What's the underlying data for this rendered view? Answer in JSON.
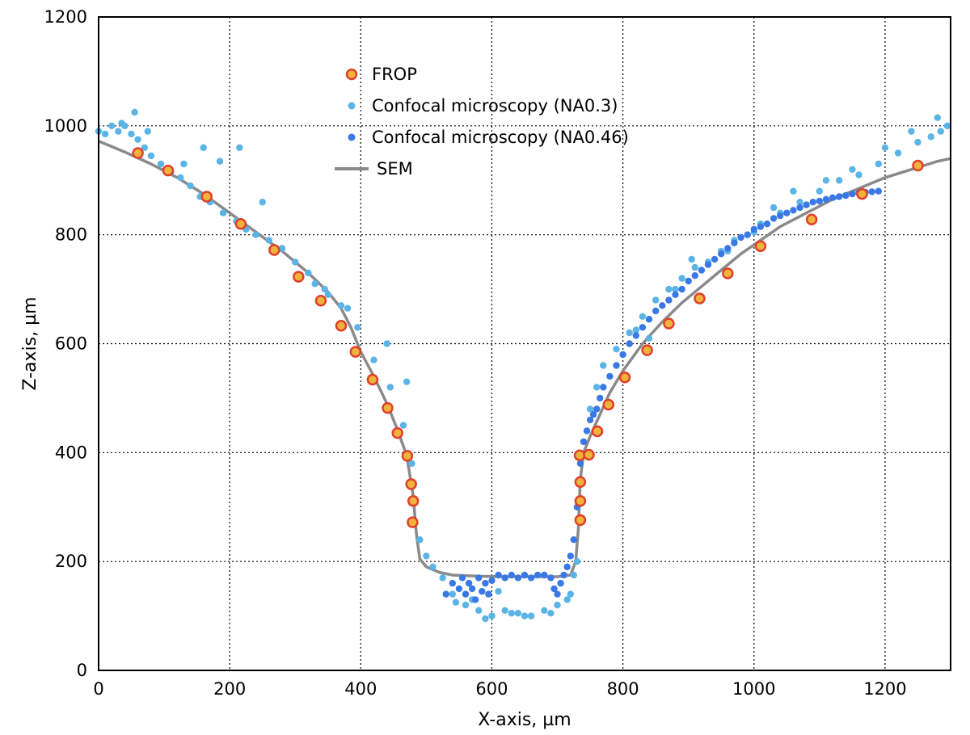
{
  "chart_data": {
    "type": "scatter",
    "title": "",
    "xlabel": "X-axis, µm",
    "ylabel": "Z-axis, µm",
    "xlim": [
      0,
      1300
    ],
    "ylim": [
      0,
      1200
    ],
    "xticks": [
      0,
      200,
      400,
      600,
      800,
      1000,
      1200
    ],
    "yticks": [
      0,
      200,
      400,
      600,
      800,
      1000,
      1200
    ],
    "grid": true,
    "legend_position": "top-center",
    "colors": {
      "frop_fill": "#f0b33c",
      "frop_edge": "#e0402a",
      "na03": "#5ab4e6",
      "na046": "#3a78e6",
      "sem": "#8a8a8a"
    },
    "series": [
      {
        "name": "FROP",
        "kind": "marker",
        "x": [
          60,
          106,
          165,
          217,
          268,
          305,
          339,
          370,
          392,
          418,
          441,
          456,
          471,
          477,
          480,
          479,
          735,
          735,
          735,
          734,
          748,
          761,
          778,
          803,
          837,
          870,
          917,
          960,
          1010,
          1088,
          1165,
          1250
        ],
        "y": [
          950,
          918,
          870,
          820,
          772,
          723,
          679,
          633,
          585,
          534,
          482,
          436,
          394,
          342,
          311,
          272,
          276,
          311,
          346,
          395,
          396,
          439,
          488,
          538,
          588,
          637,
          683,
          729,
          779,
          828,
          875,
          927
        ]
      },
      {
        "name": "Confocal microscopy (NA0.3)",
        "kind": "dots",
        "x": [
          0,
          10,
          20,
          30,
          40,
          50,
          60,
          70,
          80,
          95,
          110,
          125,
          140,
          155,
          170,
          190,
          210,
          225,
          240,
          260,
          280,
          300,
          320,
          345,
          370,
          395,
          420,
          445,
          465,
          478,
          490,
          500,
          510,
          525,
          540,
          560,
          580,
          600,
          620,
          640,
          660,
          680,
          700,
          720,
          730,
          740,
          750,
          760,
          770,
          790,
          810,
          830,
          850,
          870,
          890,
          910,
          930,
          950,
          970,
          990,
          1010,
          1040,
          1070,
          1100,
          1130,
          1160,
          1190,
          1220,
          1250,
          1270,
          1285,
          1295,
          35,
          55,
          75,
          130,
          160,
          185,
          215,
          250,
          330,
          350,
          380,
          440,
          470,
          545,
          570,
          590,
          610,
          630,
          650,
          690,
          715,
          725,
          820,
          840,
          880,
          905,
          960,
          1000,
          1030,
          1060,
          1110,
          1150,
          1200,
          1240,
          1280
        ],
        "y": [
          990,
          985,
          1000,
          990,
          1000,
          985,
          975,
          960,
          945,
          930,
          915,
          905,
          890,
          870,
          860,
          840,
          825,
          810,
          800,
          790,
          775,
          750,
          730,
          700,
          670,
          630,
          570,
          520,
          450,
          380,
          240,
          210,
          190,
          170,
          140,
          120,
          110,
          100,
          110,
          105,
          100,
          110,
          120,
          140,
          200,
          420,
          480,
          520,
          560,
          590,
          620,
          650,
          680,
          700,
          720,
          740,
          750,
          770,
          790,
          800,
          820,
          840,
          860,
          880,
          900,
          910,
          930,
          950,
          970,
          980,
          990,
          1000,
          1005,
          1025,
          990,
          930,
          960,
          935,
          960,
          860,
          710,
          690,
          665,
          600,
          530,
          125,
          130,
          95,
          145,
          105,
          100,
          105,
          130,
          175,
          625,
          610,
          700,
          755,
          770,
          805,
          850,
          880,
          900,
          920,
          960,
          990,
          1015
        ]
      },
      {
        "name": "Confocal microscopy (NA0.46)",
        "kind": "dots",
        "x": [
          530,
          540,
          550,
          555,
          560,
          565,
          570,
          575,
          580,
          585,
          590,
          595,
          600,
          610,
          620,
          630,
          640,
          650,
          660,
          670,
          680,
          690,
          695,
          700,
          705,
          710,
          715,
          720,
          725,
          730,
          735,
          740,
          745,
          750,
          755,
          760,
          765,
          770,
          780,
          790,
          800,
          810,
          820,
          830,
          840,
          850,
          860,
          870,
          880,
          890,
          900,
          910,
          920,
          930,
          940,
          950,
          960,
          970,
          980,
          990,
          1000,
          1010,
          1020,
          1030,
          1040,
          1050,
          1060,
          1070,
          1080,
          1090,
          1100,
          1110,
          1120,
          1130,
          1140,
          1150,
          1160,
          1170,
          1180,
          1190
        ],
        "y": [
          140,
          160,
          150,
          170,
          140,
          160,
          150,
          130,
          170,
          145,
          160,
          140,
          165,
          175,
          170,
          175,
          170,
          175,
          170,
          175,
          175,
          170,
          150,
          140,
          160,
          175,
          190,
          210,
          240,
          300,
          380,
          420,
          440,
          460,
          470,
          480,
          500,
          520,
          540,
          560,
          580,
          600,
          615,
          630,
          645,
          660,
          670,
          680,
          690,
          700,
          715,
          725,
          735,
          745,
          755,
          765,
          775,
          785,
          795,
          800,
          810,
          815,
          820,
          830,
          835,
          840,
          845,
          850,
          855,
          860,
          862,
          865,
          868,
          870,
          872,
          875,
          877,
          878,
          879,
          880
        ]
      },
      {
        "name": "SEM",
        "kind": "line",
        "x": [
          0,
          40,
          80,
          120,
          160,
          200,
          240,
          280,
          320,
          350,
          370,
          385,
          400,
          420,
          440,
          455,
          470,
          480,
          485,
          490,
          500,
          520,
          540,
          580,
          620,
          660,
          700,
          720,
          728,
          732,
          735,
          740,
          750,
          765,
          780,
          800,
          830,
          860,
          890,
          920,
          950,
          980,
          1010,
          1040,
          1080,
          1120,
          1160,
          1200,
          1240,
          1280,
          1300
        ],
        "y": [
          972,
          952,
          930,
          905,
          875,
          840,
          805,
          770,
          730,
          695,
          665,
          630,
          585,
          540,
          490,
          445,
          395,
          320,
          250,
          205,
          190,
          180,
          175,
          173,
          172,
          172,
          172,
          175,
          200,
          260,
          350,
          400,
          430,
          470,
          510,
          550,
          600,
          640,
          675,
          705,
          735,
          765,
          790,
          815,
          840,
          865,
          885,
          905,
          920,
          935,
          940
        ]
      }
    ]
  }
}
